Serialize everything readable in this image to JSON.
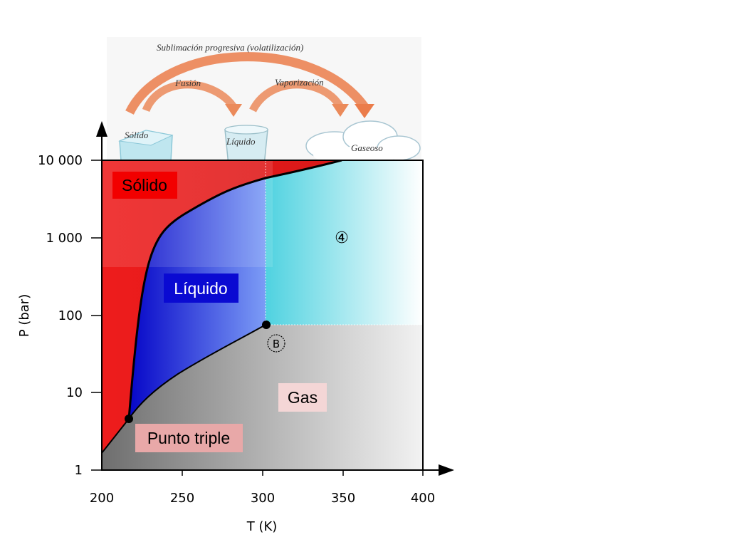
{
  "illustration": {
    "top_arc_label": "Sublimación progresiva (volatilización)",
    "fusion_label": "Fusión",
    "vaporization_label": "Vaporización",
    "solid_label": "Sólido",
    "liquid_label": "Líquido",
    "gas_label": "Gaseoso"
  },
  "regions": {
    "solid": {
      "label": "Sólido",
      "box_color": "#f20000",
      "text_color": "#000000"
    },
    "liquid": {
      "label": "Líquido",
      "box_color": "#0a0ad2",
      "text_color": "#ffffff"
    },
    "gas": {
      "label": "Gas",
      "box_color": "#f4d6d6",
      "text_color": "#000000"
    },
    "triple": {
      "label": "Punto triple",
      "box_color": "#e8a8a8",
      "text_color": "#000000"
    },
    "supercritical_marker": "④",
    "critical_marker": "B"
  },
  "chart_data": {
    "type": "phase-diagram",
    "xlabel": "T (K)",
    "ylabel": "P (bar)",
    "xlim": [
      200,
      400
    ],
    "ylim": [
      1,
      10000
    ],
    "yscale": "log",
    "x_ticks": [
      "200",
      "250",
      "300",
      "350",
      "400"
    ],
    "y_ticks": [
      "1",
      "10",
      "100",
      "1 000",
      "10 000"
    ],
    "triple_point": {
      "T": 216,
      "P": 4.5
    },
    "critical_point": {
      "T": 302,
      "P": 75
    },
    "colors": {
      "solid": "#ee1c1c",
      "liquid": "#1010cc",
      "supercritical": "#4fd2e0",
      "gas": "#7a7a7a"
    }
  }
}
